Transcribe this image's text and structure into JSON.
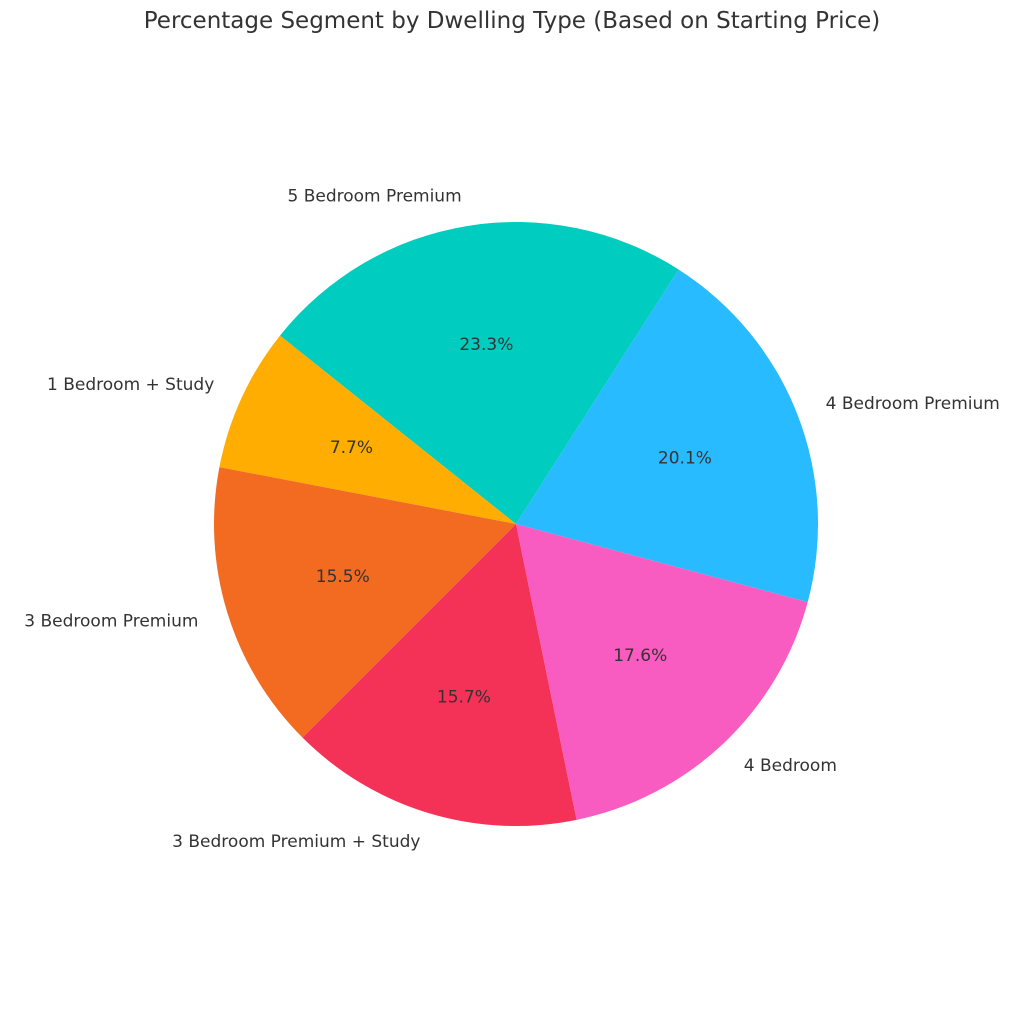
{
  "chart_data": {
    "type": "pie",
    "title": "Percentage Segment by Dwelling Type (Based on Starting Price)",
    "slices": [
      {
        "label": "4 Bedroom Premium",
        "value": 20.1,
        "pct_label": "20.1%",
        "color": "#29BBFF"
      },
      {
        "label": "5 Bedroom Premium",
        "value": 23.3,
        "pct_label": "23.3%",
        "color": "#00CCBF"
      },
      {
        "label": "1 Bedroom + Study",
        "value": 7.7,
        "pct_label": "7.7%",
        "color": "#FFAD00"
      },
      {
        "label": "3 Bedroom Premium",
        "value": 15.5,
        "pct_label": "15.5%",
        "color": "#F26B21"
      },
      {
        "label": "3 Bedroom Premium + Study",
        "value": 15.7,
        "pct_label": "15.7%",
        "color": "#F43157"
      },
      {
        "label": "4 Bedroom",
        "value": 17.6,
        "pct_label": "17.6%",
        "color": "#F95CC1"
      }
    ],
    "start_angle_deg": -15,
    "direction": "counterclockwise"
  }
}
